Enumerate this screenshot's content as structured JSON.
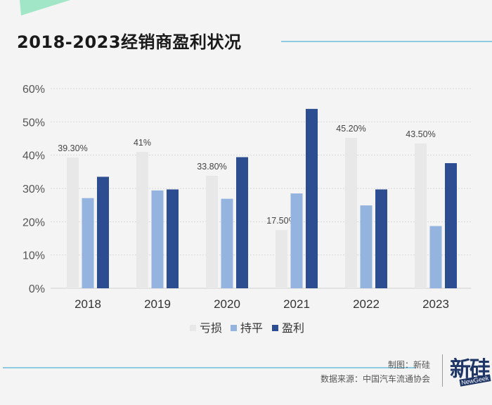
{
  "title": "2018-2023经销商盈利状况",
  "colors": {
    "loss": "#e8e8e8",
    "even": "#95b3df",
    "profit": "#2d4d91",
    "accent_line": "#8ecbe0"
  },
  "chart_data": {
    "type": "bar",
    "categories": [
      "2018",
      "2019",
      "2020",
      "2021",
      "2022",
      "2023"
    ],
    "series": [
      {
        "name": "亏损",
        "values": [
          39.3,
          41,
          33.8,
          17.5,
          45.2,
          43.5
        ],
        "labels": [
          "39.30%",
          "41%",
          "33.80%",
          "17.50%",
          "45.20%",
          "43.50%"
        ]
      },
      {
        "name": "持平",
        "values": [
          27.1,
          29.4,
          26.9,
          28.5,
          24.9,
          18.7
        ]
      },
      {
        "name": "盈利",
        "values": [
          33.5,
          29.7,
          39.4,
          53.9,
          29.7,
          37.6
        ]
      }
    ],
    "ylim": [
      0,
      60
    ],
    "yticks": [
      "0%",
      "10%",
      "20%",
      "30%",
      "40%",
      "50%",
      "60%"
    ],
    "ytick_values": [
      0,
      10,
      20,
      30,
      40,
      50,
      60
    ],
    "grid": true,
    "legend": "bottom-center"
  },
  "footer": {
    "credit": "制图：新硅",
    "source": "数据来源：中国汽车流通协会",
    "logo_text": "新硅",
    "logo_sub": "NewGeek"
  }
}
